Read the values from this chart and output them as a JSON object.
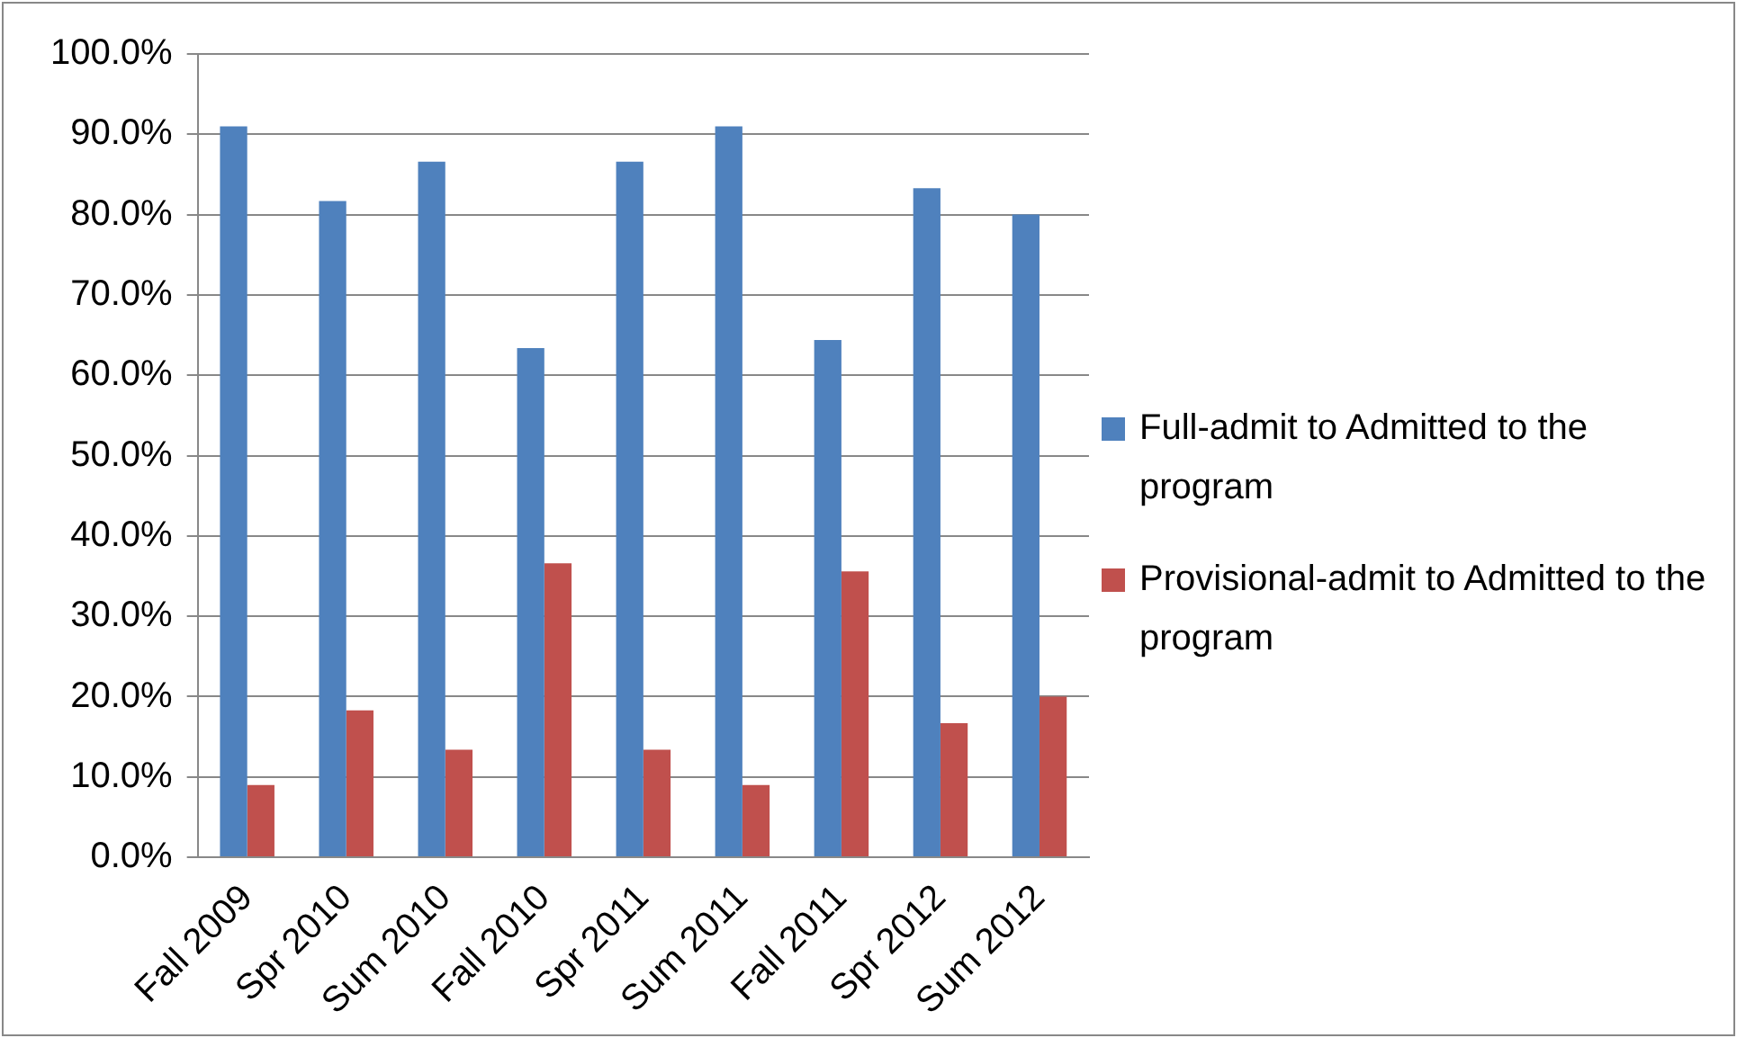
{
  "chart_data": {
    "type": "bar",
    "categories": [
      "Fall 2009",
      "Spr 2010",
      "Sum 2010",
      "Fall 2010",
      "Spr 2011",
      "Sum 2011",
      "Fall 2011",
      "Spr 2012",
      "Sum 2012"
    ],
    "series": [
      {
        "name": "Full-admit to Admitted to the program",
        "color": "#4f81bd",
        "values": [
          91.0,
          81.7,
          86.6,
          63.4,
          86.6,
          91.0,
          64.4,
          83.3,
          80.0
        ]
      },
      {
        "name": "Provisional-admit to Admitted to the program",
        "color": "#c0504d",
        "values": [
          9.0,
          18.3,
          13.4,
          36.6,
          13.4,
          9.0,
          35.6,
          16.7,
          20.0
        ]
      }
    ],
    "ylim": [
      0,
      100
    ],
    "yticks": [
      {
        "value": 0,
        "label": "0.0%"
      },
      {
        "value": 10,
        "label": "10.0%"
      },
      {
        "value": 20,
        "label": "20.0%"
      },
      {
        "value": 30,
        "label": "30.0%"
      },
      {
        "value": 40,
        "label": "40.0%"
      },
      {
        "value": 50,
        "label": "50.0%"
      },
      {
        "value": 60,
        "label": "60.0%"
      },
      {
        "value": 70,
        "label": "70.0%"
      },
      {
        "value": 80,
        "label": "80.0%"
      },
      {
        "value": 90,
        "label": "90.0%"
      },
      {
        "value": 100,
        "label": "100.0%"
      }
    ],
    "grid": "y",
    "legend": "right"
  }
}
